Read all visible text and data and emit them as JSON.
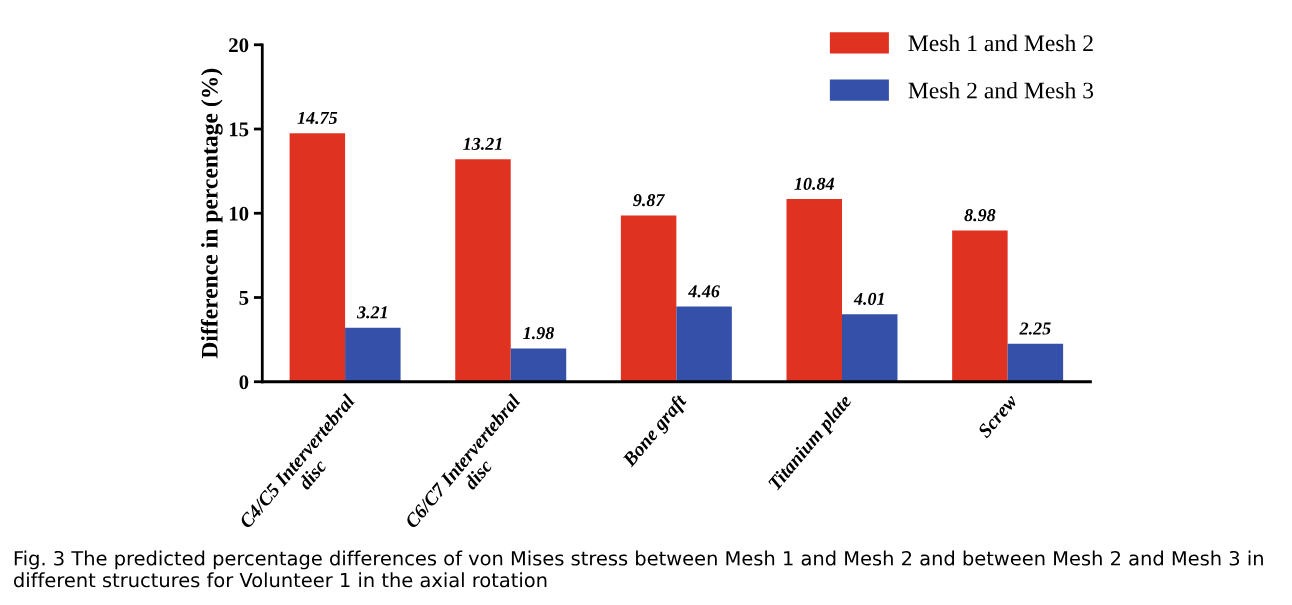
{
  "chart_data": {
    "type": "bar",
    "ylabel": "Difference in percentage (%)",
    "categories": [
      "C4/C5 Intervertebral\ndisc",
      "C6/C7 Intervertebral\ndisc",
      "Bone graft",
      "Titanium plate",
      "Screw"
    ],
    "series": [
      {
        "name": "Mesh 1 and Mesh 2",
        "color": "#e03220",
        "values": [
          14.75,
          13.21,
          9.87,
          10.84,
          8.98
        ]
      },
      {
        "name": "Mesh 2 and Mesh 3",
        "color": "#3450a8",
        "values": [
          3.21,
          1.98,
          4.46,
          4.01,
          2.25
        ]
      }
    ],
    "ylim": [
      0,
      20
    ],
    "yticks": [
      0,
      5,
      10,
      15,
      20
    ],
    "grid": false,
    "legend": "top right",
    "data_labels": true,
    "annotations": [
      "Fig. 3 The predicted percentage differences of von Mises stress between Mesh 1 and Mesh 2 and between Mesh 2 and Mesh 3 in different structures for Volunteer 1 in the axial rotation"
    ]
  }
}
